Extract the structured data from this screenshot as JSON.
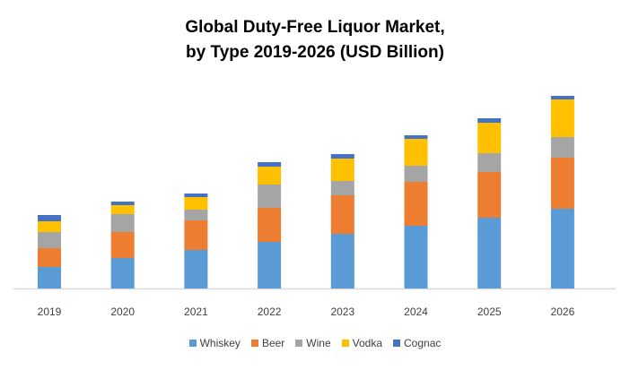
{
  "chart_data": {
    "type": "bar",
    "stacked": true,
    "title": [
      "Global Duty-Free Liquor Market,",
      "by Type 2019-2026 (USD Billion)"
    ],
    "categories": [
      "2019",
      "2020",
      "2021",
      "2022",
      "2023",
      "2024",
      "2025",
      "2026"
    ],
    "series": [
      {
        "name": "Whiskey",
        "color": "#5B9BD5",
        "values": [
          2.4,
          3.4,
          4.3,
          5.2,
          6.1,
          7.0,
          7.9,
          8.9
        ]
      },
      {
        "name": "Beer",
        "color": "#ED7D31",
        "values": [
          2.1,
          2.9,
          3.3,
          3.8,
          4.3,
          4.9,
          5.1,
          5.7
        ]
      },
      {
        "name": "Wine",
        "color": "#A5A5A5",
        "values": [
          1.8,
          2.0,
          1.2,
          2.6,
          1.6,
          1.8,
          2.1,
          2.3
        ]
      },
      {
        "name": "Vodka",
        "color": "#FFC000",
        "values": [
          1.2,
          1.0,
          1.4,
          2.0,
          2.5,
          3.0,
          3.4,
          4.2
        ]
      },
      {
        "name": "Cognac",
        "color": "#4472C4",
        "values": [
          0.7,
          0.4,
          0.4,
          0.5,
          0.5,
          0.4,
          0.5,
          0.4
        ]
      }
    ],
    "xlabel": "",
    "ylabel": "",
    "grid": false,
    "legend": "bottom"
  }
}
